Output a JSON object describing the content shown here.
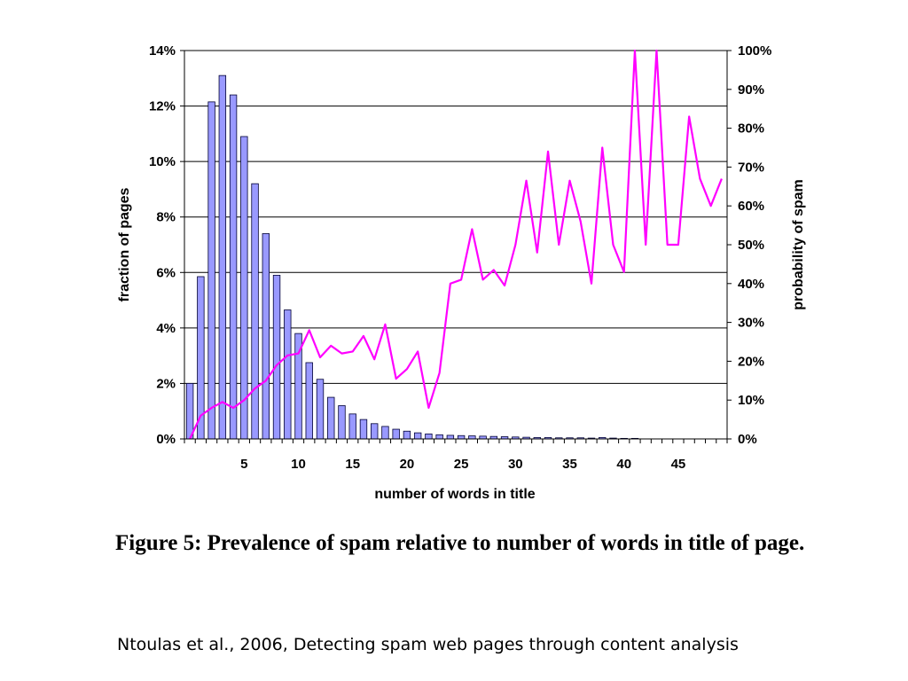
{
  "chart_data": {
    "type": "bar+line",
    "xlabel": "number of words in title",
    "ylabel_left": "fraction of pages",
    "ylabel_right": "probability of spam",
    "x_ticks": [
      "5",
      "10",
      "15",
      "20",
      "25",
      "30",
      "35",
      "40",
      "45"
    ],
    "x_tick_values": [
      5,
      10,
      15,
      20,
      25,
      30,
      35,
      40,
      45
    ],
    "left_axis": {
      "range": [
        0,
        14
      ],
      "ticks": [
        0,
        2,
        4,
        6,
        8,
        10,
        12,
        14
      ],
      "tick_labels": [
        "0%",
        "2%",
        "4%",
        "6%",
        "8%",
        "10%",
        "12%",
        "14%"
      ]
    },
    "right_axis": {
      "range": [
        0,
        100
      ],
      "ticks": [
        0,
        10,
        20,
        30,
        40,
        50,
        60,
        70,
        80,
        90,
        100
      ],
      "tick_labels": [
        "0%",
        "10%",
        "20%",
        "30%",
        "40%",
        "50%",
        "60%",
        "70%",
        "80%",
        "90%",
        "100%"
      ]
    },
    "x_range": [
      0,
      50
    ],
    "grid": "horizontal",
    "bar_color": "#9999ff",
    "line_color": "#ff00ff",
    "bars": {
      "x": [
        0,
        1,
        2,
        3,
        4,
        5,
        6,
        7,
        8,
        9,
        10,
        11,
        12,
        13,
        14,
        15,
        16,
        17,
        18,
        19,
        20,
        21,
        22,
        23,
        24,
        25,
        26,
        27,
        28,
        29,
        30,
        31,
        32,
        33,
        34,
        35,
        36,
        37,
        38,
        39,
        40,
        41
      ],
      "values": [
        2.0,
        5.85,
        12.15,
        13.1,
        12.4,
        10.9,
        9.2,
        7.4,
        5.9,
        4.65,
        3.8,
        2.75,
        2.15,
        1.5,
        1.2,
        0.9,
        0.7,
        0.55,
        0.45,
        0.35,
        0.28,
        0.22,
        0.18,
        0.15,
        0.13,
        0.12,
        0.11,
        0.1,
        0.09,
        0.08,
        0.07,
        0.06,
        0.05,
        0.05,
        0.04,
        0.04,
        0.04,
        0.03,
        0.05,
        0.03,
        0.02,
        0.02
      ]
    },
    "line": {
      "x": [
        0,
        1,
        2,
        3,
        4,
        5,
        6,
        7,
        8,
        9,
        10,
        11,
        12,
        13,
        14,
        15,
        16,
        17,
        18,
        19,
        20,
        21,
        22,
        23,
        24,
        25,
        26,
        27,
        28,
        29,
        30,
        31,
        32,
        33,
        34,
        35,
        36,
        37,
        38,
        39,
        40,
        41,
        42,
        43,
        44,
        45,
        46,
        47,
        48,
        49
      ],
      "values": [
        0,
        6,
        8,
        9.5,
        8,
        10,
        13,
        15,
        19,
        21.5,
        22,
        28,
        21,
        24,
        22,
        22.5,
        26.5,
        20.5,
        29.5,
        15.5,
        18,
        22.5,
        8,
        17,
        40,
        41,
        54,
        41,
        43.5,
        39.5,
        50,
        66.5,
        48,
        74,
        50,
        66.5,
        56,
        40,
        75,
        50,
        43,
        100,
        50,
        100,
        50,
        50,
        83,
        67,
        60,
        67
      ]
    }
  },
  "caption": "Figure 5:  Prevalence of spam relative to number of words in title of page.",
  "source": "Ntoulas et al., 2006, Detecting spam web pages through content analysis"
}
